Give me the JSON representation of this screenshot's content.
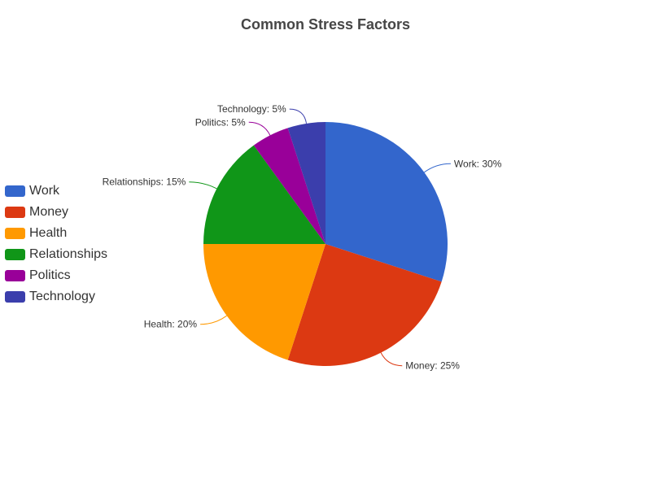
{
  "chart_data": {
    "type": "pie",
    "title": "Common Stress Factors",
    "legend_position": "left",
    "slices": [
      {
        "name": "Work",
        "value": 30,
        "label": "Work: 30%",
        "color": "#3366CC"
      },
      {
        "name": "Money",
        "value": 25,
        "label": "Money: 25%",
        "color": "#DC3912"
      },
      {
        "name": "Health",
        "value": 20,
        "label": "Health: 20%",
        "color": "#FF9900"
      },
      {
        "name": "Relationships",
        "value": 15,
        "label": "Relationships: 15%",
        "color": "#109618"
      },
      {
        "name": "Politics",
        "value": 5,
        "label": "Politics: 5%",
        "color": "#990099"
      },
      {
        "name": "Technology",
        "value": 5,
        "label": "Technology: 5%",
        "color": "#3B3EAC"
      }
    ]
  }
}
